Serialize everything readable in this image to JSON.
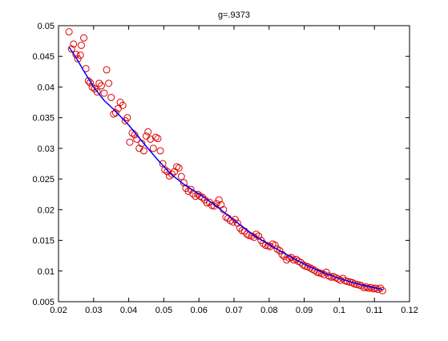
{
  "chart_data": {
    "type": "scatter",
    "title": "g=.9373",
    "xlabel": "",
    "ylabel": "",
    "xlim": [
      0.02,
      0.12
    ],
    "ylim": [
      0.005,
      0.05
    ],
    "xticks": [
      0.02,
      0.03,
      0.04,
      0.05,
      0.06,
      0.07,
      0.08,
      0.09,
      0.1,
      0.11,
      0.12
    ],
    "xtick_labels": [
      "0.02",
      "0.03",
      "0.04",
      "0.05",
      "0.06",
      "0.07",
      "0.08",
      "0.09",
      "0.1",
      "0.11",
      "0.12"
    ],
    "yticks": [
      0.005,
      0.01,
      0.015,
      0.02,
      0.025,
      0.03,
      0.035,
      0.04,
      0.045,
      0.05
    ],
    "ytick_labels": [
      "0.005",
      "0.01",
      "0.015",
      "0.02",
      "0.025",
      "0.03",
      "0.035",
      "0.04",
      "0.045",
      "0.05"
    ],
    "grid": false,
    "legend": "none",
    "colors": {
      "points": "#dd0000",
      "fit_line": "#0000ff",
      "axes": "#000000",
      "background": "#ffffff"
    },
    "series": [
      {
        "type": "scatter",
        "marker": "circle-open",
        "points": [
          [
            0.023,
            0.049
          ],
          [
            0.0237,
            0.0462
          ],
          [
            0.0243,
            0.047
          ],
          [
            0.025,
            0.0453
          ],
          [
            0.0255,
            0.0446
          ],
          [
            0.0262,
            0.0452
          ],
          [
            0.0265,
            0.0468
          ],
          [
            0.0272,
            0.048
          ],
          [
            0.0278,
            0.043
          ],
          [
            0.0285,
            0.041
          ],
          [
            0.029,
            0.0407
          ],
          [
            0.0296,
            0.04
          ],
          [
            0.0303,
            0.0397
          ],
          [
            0.031,
            0.0392
          ],
          [
            0.0316,
            0.0406
          ],
          [
            0.0322,
            0.0402
          ],
          [
            0.033,
            0.039
          ],
          [
            0.0337,
            0.0428
          ],
          [
            0.0343,
            0.0406
          ],
          [
            0.035,
            0.0383
          ],
          [
            0.0357,
            0.0356
          ],
          [
            0.0363,
            0.0358
          ],
          [
            0.037,
            0.0365
          ],
          [
            0.0376,
            0.0375
          ],
          [
            0.0383,
            0.037
          ],
          [
            0.039,
            0.0345
          ],
          [
            0.0396,
            0.035
          ],
          [
            0.0403,
            0.031
          ],
          [
            0.041,
            0.0325
          ],
          [
            0.0417,
            0.0322
          ],
          [
            0.0423,
            0.0315
          ],
          [
            0.043,
            0.03
          ],
          [
            0.0437,
            0.0308
          ],
          [
            0.0443,
            0.0296
          ],
          [
            0.045,
            0.032
          ],
          [
            0.0455,
            0.0327
          ],
          [
            0.0462,
            0.0315
          ],
          [
            0.047,
            0.03
          ],
          [
            0.0477,
            0.0318
          ],
          [
            0.0483,
            0.0316
          ],
          [
            0.049,
            0.0296
          ],
          [
            0.0497,
            0.0275
          ],
          [
            0.0503,
            0.0265
          ],
          [
            0.051,
            0.0262
          ],
          [
            0.0516,
            0.0255
          ],
          [
            0.0523,
            0.0258
          ],
          [
            0.053,
            0.0262
          ],
          [
            0.0537,
            0.027
          ],
          [
            0.0543,
            0.0268
          ],
          [
            0.055,
            0.0254
          ],
          [
            0.0557,
            0.0244
          ],
          [
            0.0563,
            0.0235
          ],
          [
            0.057,
            0.023
          ],
          [
            0.0577,
            0.0233
          ],
          [
            0.0583,
            0.0226
          ],
          [
            0.059,
            0.0222
          ],
          [
            0.0597,
            0.0225
          ],
          [
            0.0603,
            0.0222
          ],
          [
            0.061,
            0.022
          ],
          [
            0.0617,
            0.0216
          ],
          [
            0.0623,
            0.0211
          ],
          [
            0.063,
            0.0212
          ],
          [
            0.0637,
            0.0207
          ],
          [
            0.0643,
            0.0206
          ],
          [
            0.065,
            0.021
          ],
          [
            0.0657,
            0.0216
          ],
          [
            0.0663,
            0.0208
          ],
          [
            0.067,
            0.02
          ],
          [
            0.0677,
            0.0188
          ],
          [
            0.0683,
            0.0186
          ],
          [
            0.069,
            0.0182
          ],
          [
            0.0697,
            0.018
          ],
          [
            0.0703,
            0.0184
          ],
          [
            0.071,
            0.0178
          ],
          [
            0.0717,
            0.017
          ],
          [
            0.0723,
            0.0166
          ],
          [
            0.073,
            0.0165
          ],
          [
            0.0737,
            0.016
          ],
          [
            0.0743,
            0.0158
          ],
          [
            0.075,
            0.0157
          ],
          [
            0.0757,
            0.0155
          ],
          [
            0.0763,
            0.016
          ],
          [
            0.077,
            0.0157
          ],
          [
            0.0777,
            0.015
          ],
          [
            0.0783,
            0.0145
          ],
          [
            0.079,
            0.0142
          ],
          [
            0.0797,
            0.0141
          ],
          [
            0.0803,
            0.014
          ],
          [
            0.081,
            0.0144
          ],
          [
            0.0817,
            0.0142
          ],
          [
            0.0823,
            0.0136
          ],
          [
            0.083,
            0.0133
          ],
          [
            0.0837,
            0.0127
          ],
          [
            0.0843,
            0.0124
          ],
          [
            0.085,
            0.0118
          ],
          [
            0.0857,
            0.0121
          ],
          [
            0.0863,
            0.0122
          ],
          [
            0.087,
            0.0118
          ],
          [
            0.0877,
            0.0119
          ],
          [
            0.0883,
            0.0116
          ],
          [
            0.089,
            0.0114
          ],
          [
            0.0897,
            0.011
          ],
          [
            0.0903,
            0.0108
          ],
          [
            0.091,
            0.0107
          ],
          [
            0.0917,
            0.0105
          ],
          [
            0.0923,
            0.0103
          ],
          [
            0.093,
            0.0101
          ],
          [
            0.0937,
            0.0098
          ],
          [
            0.0943,
            0.0097
          ],
          [
            0.095,
            0.0096
          ],
          [
            0.0957,
            0.0094
          ],
          [
            0.0963,
            0.0098
          ],
          [
            0.097,
            0.0092
          ],
          [
            0.0977,
            0.009
          ],
          [
            0.0983,
            0.0091
          ],
          [
            0.099,
            0.0089
          ],
          [
            0.0997,
            0.0087
          ],
          [
            0.1003,
            0.0085
          ],
          [
            0.101,
            0.0088
          ],
          [
            0.1017,
            0.0084
          ],
          [
            0.1023,
            0.0083
          ],
          [
            0.103,
            0.0082
          ],
          [
            0.1037,
            0.0081
          ],
          [
            0.1043,
            0.0079
          ],
          [
            0.105,
            0.0078
          ],
          [
            0.1057,
            0.0077
          ],
          [
            0.1063,
            0.0076
          ],
          [
            0.107,
            0.0073
          ],
          [
            0.1077,
            0.0074
          ],
          [
            0.1083,
            0.0072
          ],
          [
            0.109,
            0.0073
          ],
          [
            0.1097,
            0.0071
          ],
          [
            0.1103,
            0.0072
          ],
          [
            0.111,
            0.007
          ],
          [
            0.1117,
            0.0072
          ],
          [
            0.1123,
            0.0068
          ]
        ]
      },
      {
        "type": "line",
        "points": [
          [
            0.023,
            0.0465
          ],
          [
            0.025,
            0.0448
          ],
          [
            0.027,
            0.0428
          ],
          [
            0.03,
            0.04
          ],
          [
            0.033,
            0.0378
          ],
          [
            0.036,
            0.0362
          ],
          [
            0.04,
            0.0338
          ],
          [
            0.044,
            0.031
          ],
          [
            0.048,
            0.0283
          ],
          [
            0.052,
            0.0258
          ],
          [
            0.056,
            0.024
          ],
          [
            0.06,
            0.0226
          ],
          [
            0.064,
            0.021
          ],
          [
            0.068,
            0.0192
          ],
          [
            0.072,
            0.0174
          ],
          [
            0.076,
            0.0157
          ],
          [
            0.08,
            0.0143
          ],
          [
            0.084,
            0.013
          ],
          [
            0.088,
            0.0117
          ],
          [
            0.092,
            0.0106
          ],
          [
            0.096,
            0.0096
          ],
          [
            0.1,
            0.0088
          ],
          [
            0.104,
            0.0081
          ],
          [
            0.108,
            0.0075
          ],
          [
            0.1123,
            0.007
          ]
        ]
      }
    ]
  }
}
